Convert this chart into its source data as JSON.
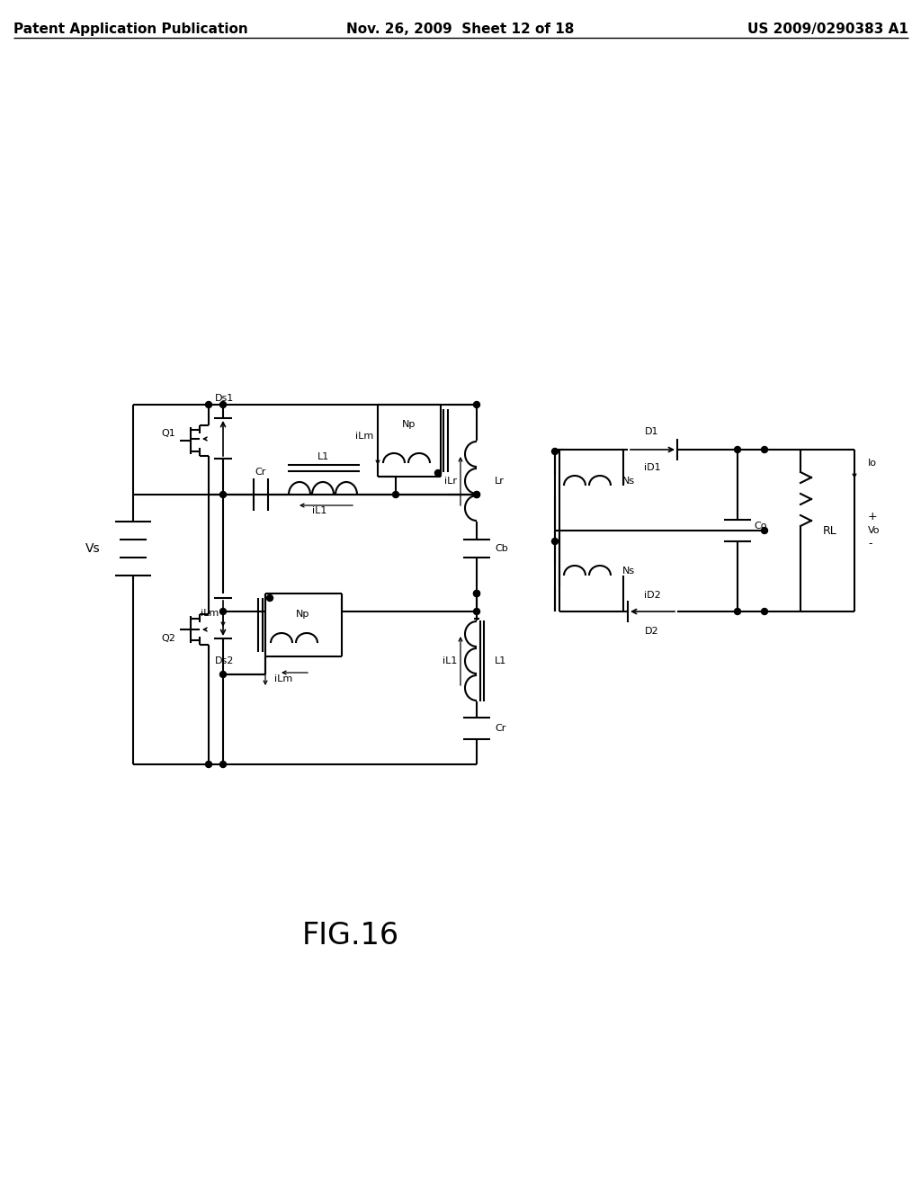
{
  "title": "FIG.16",
  "header_left": "Patent Application Publication",
  "header_mid": "Nov. 26, 2009  Sheet 12 of 18",
  "header_right": "US 2009/0290383 A1",
  "bg_color": "#ffffff",
  "line_color": "#000000",
  "font_size_header": 11,
  "font_size_label": 9,
  "font_size_title": 22
}
